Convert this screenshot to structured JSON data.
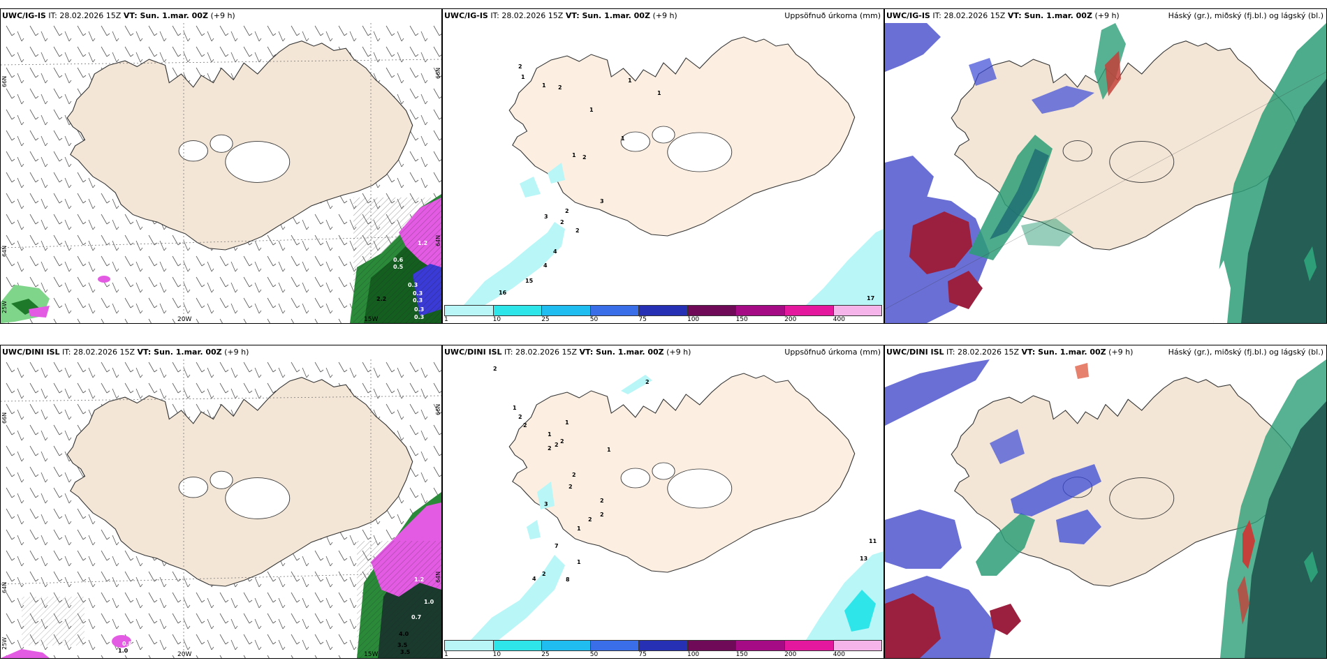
{
  "rows": [
    {
      "model": "UWC/IG-IS",
      "it_label": "IT: 28.02.2026 15Z",
      "vt_label": "VT: Sun. 1.mar. 00Z",
      "offset": "(+9 h)"
    },
    {
      "model": "UWC/DINI ISL",
      "it_label": "IT: 28.02.2026 15Z",
      "vt_label": "VT: Sun. 1.mar. 00Z",
      "offset": "(+9 h)"
    }
  ],
  "panels": {
    "precip_title": "Uppsöfnuð úrkoma (mm)",
    "cloud_title": "Háský (gr.), miðský (fj.bl.) og lágský (bl.)"
  },
  "axis_labels": {
    "lon_20w": "20W",
    "lon_15w": "15W",
    "lat_66n": "66N",
    "lat_64n": "64N",
    "lat_25w": "25W"
  },
  "wind_values": {
    "top": [
      "0.6",
      "0.5",
      "1.2",
      "0.3",
      "0.3",
      "0.3",
      "2.2",
      "0.3",
      "0.3"
    ],
    "bottom": [
      "1.2",
      "1.0",
      "0.7",
      "4.0",
      "3.5",
      "3.5",
      "0.8",
      "1.0"
    ]
  },
  "precip_legend": {
    "ticks": [
      "1",
      "10",
      "25",
      "50",
      "75",
      "100",
      "150",
      "200",
      "400"
    ],
    "colors": [
      "#b8f6f7",
      "#2ee6ea",
      "#1fbdf0",
      "#3a6ee8",
      "#2630b4",
      "#6e0a58",
      "#a40b84",
      "#e3189e",
      "#f5b5ea"
    ]
  },
  "precip_values": {
    "top": [
      "2",
      "1",
      "1",
      "2",
      "1",
      "1",
      "1",
      "1",
      "1",
      "2",
      "3",
      "2",
      "2",
      "3",
      "2",
      "4",
      "4",
      "15",
      "16",
      "17"
    ],
    "bottom": [
      "2",
      "2",
      "1",
      "2",
      "2",
      "1",
      "1",
      "2",
      "2",
      "2",
      "1",
      "2",
      "2",
      "2",
      "3",
      "2",
      "2",
      "1",
      "7",
      "1",
      "2",
      "8",
      "4",
      "11",
      "13"
    ]
  },
  "colors": {
    "land": "#f3e6d6",
    "land_precip": "#fcefe2",
    "magenta": "#e35be3",
    "green_dark": "#1e7a2a",
    "high_cloud": "#6a6fd6",
    "mid_cloud": "#2d9e78",
    "low_cloud": "#9b1f3e"
  }
}
